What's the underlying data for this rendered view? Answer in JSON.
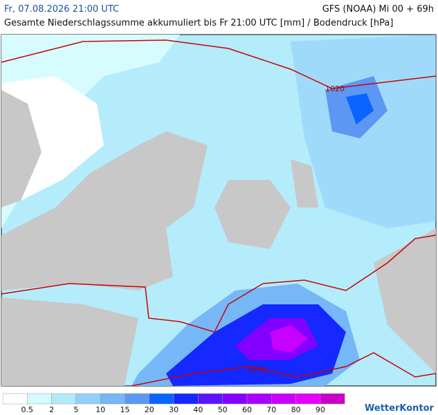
{
  "header": {
    "date": "Fr, 07.08.2026 21:00 UTC",
    "model": "GFS (NOAA) Mi 00 + 69h",
    "title": "Gesamte Niederschlagssumme akkumuliert bis Fr 21:00 UTC [mm] / Bodendruck [hPa]"
  },
  "isobars": [
    {
      "label": "1020"
    },
    {
      "label": "1016"
    }
  ],
  "legend": {
    "colors": [
      "#ffffff",
      "#d2fcff",
      "#b2eafb",
      "#93cffa",
      "#76b7f8",
      "#5c97f3",
      "#0a64ff",
      "#1428ff",
      "#5a14ff",
      "#8200ff",
      "#aa00ff",
      "#c800ff",
      "#e600ff",
      "#c800c8"
    ],
    "labels": [
      "0.5",
      "2",
      "5",
      "10",
      "15",
      "20",
      "30",
      "40",
      "50",
      "60",
      "70",
      "80",
      "90"
    ]
  },
  "logo": "WetterKontor"
}
